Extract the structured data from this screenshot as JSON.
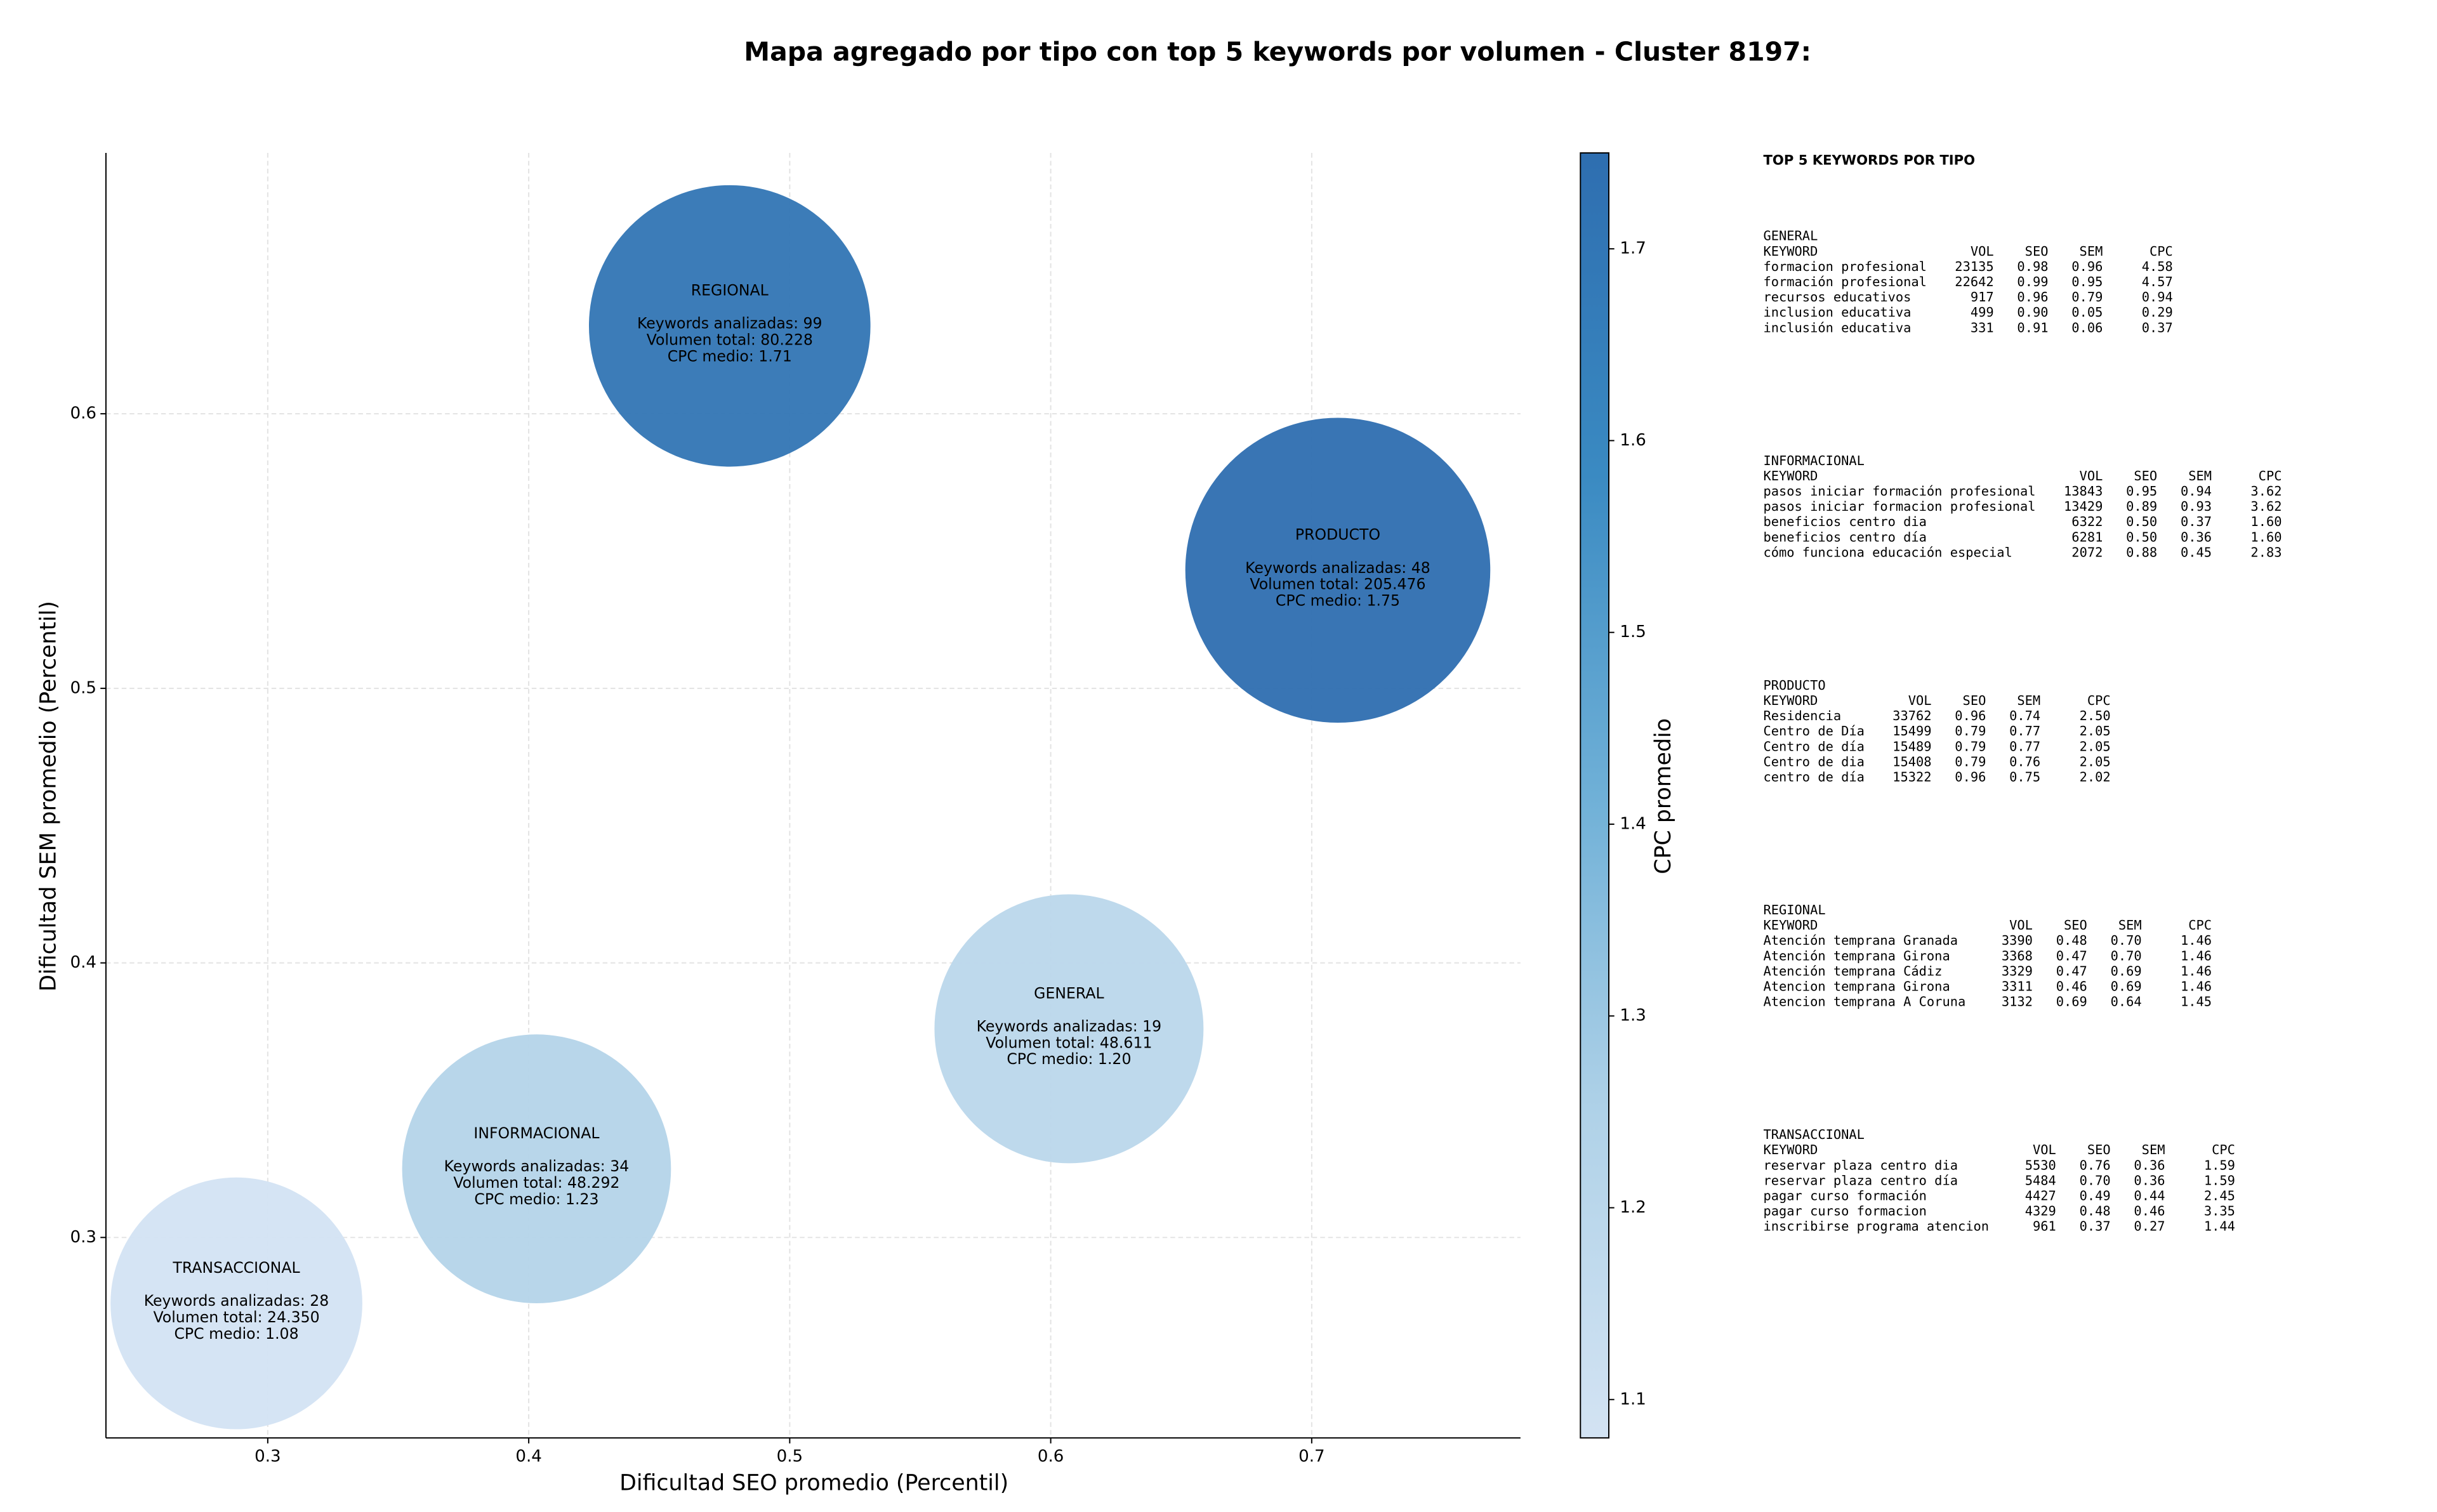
{
  "chart_data": {
    "type": "bubble",
    "title": "Mapa agregado por tipo con top 5 keywords por volumen - Cluster 8197:",
    "x_label": "Dificultad SEO promedio (Percentil)",
    "y_label": "Dificultad SEM promedio (Percentil)",
    "categories": [
      "GENERAL",
      "INFORMACIONAL",
      "PRODUCTO",
      "REGIONAL",
      "TRANSACCIONAL"
    ],
    "x": [
      0.607,
      0.403,
      0.71,
      0.477,
      0.288
    ],
    "values": [
      0.376,
      0.325,
      0.543,
      0.632,
      0.276
    ],
    "sizes": [
      48611,
      48292,
      205476,
      80228,
      24350
    ],
    "cpc": [
      1.2,
      1.23,
      1.75,
      1.71,
      1.08
    ],
    "annotations": [
      [
        "Keywords analizadas: 19",
        "Volumen total: 48.611",
        "CPC medio: 1.20"
      ],
      [
        "Keywords analizadas: 34",
        "Volumen total: 48.292",
        "CPC medio: 1.23"
      ],
      [
        "Keywords analizadas: 48",
        "Volumen total: 205.476",
        "CPC medio: 1.75"
      ],
      [
        "Keywords analizadas: 99",
        "Volumen total: 80.228",
        "CPC medio: 1.71"
      ],
      [
        "Keywords analizadas: 28",
        "Volumen total: 24.350",
        "CPC medio: 1.08"
      ]
    ],
    "xlim": [
      0.238,
      0.78
    ],
    "ylim": [
      0.227,
      0.695
    ],
    "xticks": [
      0.3,
      0.4,
      0.5,
      0.6,
      0.7
    ],
    "yticks": [
      0.3,
      0.4,
      0.5,
      0.6
    ],
    "grid": true,
    "colorbar": {
      "label": "CPC promedio",
      "clim": [
        1.08,
        1.75
      ],
      "ticks": [
        1.1,
        1.2,
        1.3,
        1.4,
        1.5,
        1.6,
        1.7
      ],
      "colormap": [
        "#d3e3f3",
        "#b0d2e8",
        "#6fb0d7",
        "#3a8ac2",
        "#2e6eb0"
      ]
    }
  },
  "side_panel": {
    "title": "TOP 5 KEYWORDS POR TIPO",
    "header": [
      "KEYWORD",
      "VOL",
      "SEO",
      "SEM",
      "CPC"
    ],
    "tables": [
      {
        "title": "GENERAL",
        "rows": [
          [
            "formacion profesional",
            "23135",
            "0.98",
            "0.96",
            "4.58"
          ],
          [
            "formación profesional",
            "22642",
            "0.99",
            "0.95",
            "4.57"
          ],
          [
            "recursos educativos",
            "917",
            "0.96",
            "0.79",
            "0.94"
          ],
          [
            "inclusion educativa",
            "499",
            "0.90",
            "0.05",
            "0.29"
          ],
          [
            "inclusión educativa",
            "331",
            "0.91",
            "0.06",
            "0.37"
          ]
        ]
      },
      {
        "title": "INFORMACIONAL",
        "rows": [
          [
            "pasos iniciar formación profesional",
            "13843",
            "0.95",
            "0.94",
            "3.62"
          ],
          [
            "pasos iniciar formacion profesional",
            "13429",
            "0.89",
            "0.93",
            "3.62"
          ],
          [
            "beneficios centro dia",
            "6322",
            "0.50",
            "0.37",
            "1.60"
          ],
          [
            "beneficios centro día",
            "6281",
            "0.50",
            "0.36",
            "1.60"
          ],
          [
            "cómo funciona educación especial",
            "2072",
            "0.88",
            "0.45",
            "2.83"
          ]
        ]
      },
      {
        "title": "PRODUCTO",
        "rows": [
          [
            "Residencia",
            "33762",
            "0.96",
            "0.74",
            "2.50"
          ],
          [
            "Centro de Día",
            "15499",
            "0.79",
            "0.77",
            "2.05"
          ],
          [
            "Centro de día",
            "15489",
            "0.79",
            "0.77",
            "2.05"
          ],
          [
            "Centro de dia",
            "15408",
            "0.79",
            "0.76",
            "2.05"
          ],
          [
            "centro de día",
            "15322",
            "0.96",
            "0.75",
            "2.02"
          ]
        ]
      },
      {
        "title": "REGIONAL",
        "rows": [
          [
            "Atención temprana Granada",
            "3390",
            "0.48",
            "0.70",
            "1.46"
          ],
          [
            "Atención temprana Girona",
            "3368",
            "0.47",
            "0.70",
            "1.46"
          ],
          [
            "Atención temprana Cádiz",
            "3329",
            "0.47",
            "0.69",
            "1.46"
          ],
          [
            "Atencion temprana Girona",
            "3311",
            "0.46",
            "0.69",
            "1.46"
          ],
          [
            "Atencion temprana A Coruna",
            "3132",
            "0.69",
            "0.64",
            "1.45"
          ]
        ]
      },
      {
        "title": "TRANSACCIONAL",
        "rows": [
          [
            "reservar plaza centro dia",
            "5530",
            "0.76",
            "0.36",
            "1.59"
          ],
          [
            "reservar plaza centro día",
            "5484",
            "0.70",
            "0.36",
            "1.59"
          ],
          [
            "pagar curso formación",
            "4427",
            "0.49",
            "0.44",
            "2.45"
          ],
          [
            "pagar curso formacion",
            "4329",
            "0.48",
            "0.46",
            "3.35"
          ],
          [
            "inscribirse programa atencion",
            "961",
            "0.37",
            "0.27",
            "1.44"
          ]
        ]
      }
    ]
  }
}
